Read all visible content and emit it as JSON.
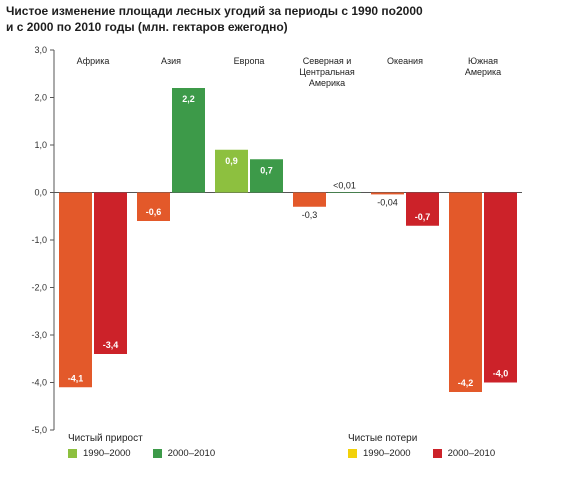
{
  "title_line1": "Чистое изменение площади лесных угодий за периоды с 1990 по2000",
  "title_line2": "и с 2000 по 2010 годы (млн. гектаров ежегодно)",
  "chart_data": {
    "type": "bar",
    "ylim": [
      -5,
      3
    ],
    "yticks": [
      "3,0",
      "2,0",
      "1,0",
      "0,0",
      "-1,0",
      "-2,0",
      "-3,0",
      "-4,0",
      "-5,0"
    ],
    "categories": [
      [
        "Африка"
      ],
      [
        "Азия"
      ],
      [
        "Европа"
      ],
      [
        "Северная и",
        "Центральная",
        "Америка"
      ],
      [
        "Океания"
      ],
      [
        "Южная",
        "Америка"
      ]
    ],
    "series": [
      {
        "period": "1990–2000",
        "values": [
          -4.1,
          -0.6,
          0.9,
          -0.3,
          -0.04,
          -4.2
        ],
        "labels": [
          "-4,1",
          "-0,6",
          "0,9",
          "-0,3",
          "-0,04",
          "-4,2"
        ]
      },
      {
        "period": "2000–2010",
        "values": [
          -3.4,
          2.2,
          0.7,
          0.005,
          -0.7,
          -4.0
        ],
        "labels": [
          "-3,4",
          "2,2",
          "0,7",
          "<0,01",
          "-0,7",
          "-4,0"
        ]
      }
    ],
    "colors": {
      "gain_1990_2000": "#8dc03f",
      "gain_2000_2010": "#3d9a49",
      "loss_1990_2000": "#e3592a",
      "loss_2000_2010": "#cc2229",
      "loss_legend_1990_2000": "#f2d10a"
    },
    "grid": false
  },
  "legend": {
    "gain_header": "Чистый прирост",
    "loss_header": "Чистые потери",
    "gain_items": [
      "1990–2000",
      "2000–2010"
    ],
    "loss_items": [
      "1990–2000",
      "2000–2010"
    ]
  }
}
